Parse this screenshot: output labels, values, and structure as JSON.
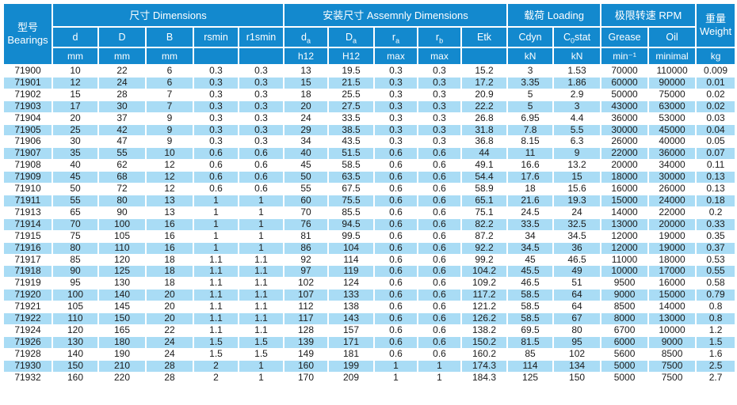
{
  "colors": {
    "header_blue": "#1389ce",
    "row_stripe_blue": "#a9dcf5",
    "row_white": "#ffffff",
    "text_dark": "#1b1b1b"
  },
  "table": {
    "bearings_header": {
      "zh": "型号",
      "en": "Bearings"
    },
    "groups": {
      "dimensions": "尺寸 Dimensions",
      "assembly": "安装尺寸 Assemnly Dimensions",
      "loading": "载荷 Loading",
      "rpm": "极限转速 RPM"
    },
    "weight_header": {
      "zh": "重量",
      "en": "Weight"
    },
    "weight_unit": "kg",
    "columns": [
      {
        "key": "d",
        "name": "d",
        "sub": "",
        "tail": "",
        "unit": "mm"
      },
      {
        "key": "D",
        "name": "D",
        "sub": "",
        "tail": "",
        "unit": "mm"
      },
      {
        "key": "B",
        "name": "B",
        "sub": "",
        "tail": "",
        "unit": "mm"
      },
      {
        "key": "rsmin",
        "name": "rsmin",
        "sub": "",
        "tail": "",
        "unit": ""
      },
      {
        "key": "r1smin",
        "name": "r1smin",
        "sub": "",
        "tail": "",
        "unit": ""
      },
      {
        "key": "da",
        "name": "d",
        "sub": "a",
        "tail": "",
        "unit": "h12"
      },
      {
        "key": "Da",
        "name": "D",
        "sub": "a",
        "tail": "",
        "unit": "H12"
      },
      {
        "key": "ra",
        "name": "r",
        "sub": "a",
        "tail": "",
        "unit": "max"
      },
      {
        "key": "rb",
        "name": "r",
        "sub": "b",
        "tail": "",
        "unit": "max"
      },
      {
        "key": "Etk",
        "name": "Etk",
        "sub": "",
        "tail": "",
        "unit": ""
      },
      {
        "key": "Cdyn",
        "name": "Cdyn",
        "sub": "",
        "tail": "",
        "unit": "kN"
      },
      {
        "key": "C0stat",
        "name": "C",
        "sub": "0",
        "tail": "stat",
        "unit": "kN"
      },
      {
        "key": "Grease",
        "name": "Grease",
        "sub": "",
        "tail": "",
        "unit": "min⁻¹"
      },
      {
        "key": "Oil",
        "name": "Oil",
        "sub": "",
        "tail": "",
        "unit": "minimal"
      }
    ],
    "rows": [
      [
        "71900",
        "10",
        "22",
        "6",
        "0.3",
        "0.3",
        "13",
        "19.5",
        "0.3",
        "0.3",
        "15.2",
        "3",
        "1.53",
        "70000",
        "110000",
        "0.009"
      ],
      [
        "71901",
        "12",
        "24",
        "6",
        "0.3",
        "0.3",
        "15",
        "21.5",
        "0.3",
        "0.3",
        "17.2",
        "3.35",
        "1.86",
        "60000",
        "90000",
        "0.01"
      ],
      [
        "71902",
        "15",
        "28",
        "7",
        "0.3",
        "0.3",
        "18",
        "25.5",
        "0.3",
        "0.3",
        "20.9",
        "5",
        "2.9",
        "50000",
        "75000",
        "0.02"
      ],
      [
        "71903",
        "17",
        "30",
        "7",
        "0.3",
        "0.3",
        "20",
        "27.5",
        "0.3",
        "0.3",
        "22.2",
        "5",
        "3",
        "43000",
        "63000",
        "0.02"
      ],
      [
        "71904",
        "20",
        "37",
        "9",
        "0.3",
        "0.3",
        "24",
        "33.5",
        "0.3",
        "0.3",
        "26.8",
        "6.95",
        "4.4",
        "36000",
        "53000",
        "0.03"
      ],
      [
        "71905",
        "25",
        "42",
        "9",
        "0.3",
        "0.3",
        "29",
        "38.5",
        "0.3",
        "0.3",
        "31.8",
        "7.8",
        "5.5",
        "30000",
        "45000",
        "0.04"
      ],
      [
        "71906",
        "30",
        "47",
        "9",
        "0.3",
        "0.3",
        "34",
        "43.5",
        "0.3",
        "0.3",
        "36.8",
        "8.15",
        "6.3",
        "26000",
        "40000",
        "0.05"
      ],
      [
        "71907",
        "35",
        "55",
        "10",
        "0.6",
        "0.6",
        "40",
        "51.5",
        "0.6",
        "0.6",
        "44",
        "11",
        "9",
        "22000",
        "36000",
        "0.07"
      ],
      [
        "71908",
        "40",
        "62",
        "12",
        "0.6",
        "0.6",
        "45",
        "58.5",
        "0.6",
        "0.6",
        "49.1",
        "16.6",
        "13.2",
        "20000",
        "34000",
        "0.11"
      ],
      [
        "71909",
        "45",
        "68",
        "12",
        "0.6",
        "0.6",
        "50",
        "63.5",
        "0.6",
        "0.6",
        "54.4",
        "17.6",
        "15",
        "18000",
        "30000",
        "0.13"
      ],
      [
        "71910",
        "50",
        "72",
        "12",
        "0.6",
        "0.6",
        "55",
        "67.5",
        "0.6",
        "0.6",
        "58.9",
        "18",
        "15.6",
        "16000",
        "26000",
        "0.13"
      ],
      [
        "71911",
        "55",
        "80",
        "13",
        "1",
        "1",
        "60",
        "75.5",
        "0.6",
        "0.6",
        "65.1",
        "21.6",
        "19.3",
        "15000",
        "24000",
        "0.18"
      ],
      [
        "71913",
        "65",
        "90",
        "13",
        "1",
        "1",
        "70",
        "85.5",
        "0.6",
        "0.6",
        "75.1",
        "24.5",
        "24",
        "14000",
        "22000",
        "0.2"
      ],
      [
        "71914",
        "70",
        "100",
        "16",
        "1",
        "1",
        "76",
        "94.5",
        "0.6",
        "0.6",
        "82.2",
        "33.5",
        "32.5",
        "13000",
        "20000",
        "0.33"
      ],
      [
        "71915",
        "75",
        "105",
        "16",
        "1",
        "1",
        "81",
        "99.5",
        "0.6",
        "0.6",
        "87.2",
        "34",
        "34.5",
        "12000",
        "19000",
        "0.35"
      ],
      [
        "71916",
        "80",
        "110",
        "16",
        "1",
        "1",
        "86",
        "104",
        "0.6",
        "0.6",
        "92.2",
        "34.5",
        "36",
        "12000",
        "19000",
        "0.37"
      ],
      [
        "71917",
        "85",
        "120",
        "18",
        "1.1",
        "1.1",
        "92",
        "114",
        "0.6",
        "0.6",
        "99.2",
        "45",
        "46.5",
        "11000",
        "18000",
        "0.53"
      ],
      [
        "71918",
        "90",
        "125",
        "18",
        "1.1",
        "1.1",
        "97",
        "119",
        "0.6",
        "0.6",
        "104.2",
        "45.5",
        "49",
        "10000",
        "17000",
        "0.55"
      ],
      [
        "71919",
        "95",
        "130",
        "18",
        "1.1",
        "1.1",
        "102",
        "124",
        "0.6",
        "0.6",
        "109.2",
        "46.5",
        "51",
        "9500",
        "16000",
        "0.58"
      ],
      [
        "71920",
        "100",
        "140",
        "20",
        "1.1",
        "1.1",
        "107",
        "133",
        "0.6",
        "0.6",
        "117.2",
        "58.5",
        "64",
        "9000",
        "15000",
        "0.79"
      ],
      [
        "71921",
        "105",
        "145",
        "20",
        "1.1",
        "1.1",
        "112",
        "138",
        "0.6",
        "0.6",
        "121.2",
        "58.5",
        "64",
        "8500",
        "14000",
        "0.8"
      ],
      [
        "71922",
        "110",
        "150",
        "20",
        "1.1",
        "1.1",
        "117",
        "143",
        "0.6",
        "0.6",
        "126.2",
        "58.5",
        "67",
        "8000",
        "13000",
        "0.8"
      ],
      [
        "71924",
        "120",
        "165",
        "22",
        "1.1",
        "1.1",
        "128",
        "157",
        "0.6",
        "0.6",
        "138.2",
        "69.5",
        "80",
        "6700",
        "10000",
        "1.2"
      ],
      [
        "71926",
        "130",
        "180",
        "24",
        "1.5",
        "1.5",
        "139",
        "171",
        "0.6",
        "0.6",
        "150.2",
        "81.5",
        "95",
        "6000",
        "9000",
        "1.5"
      ],
      [
        "71928",
        "140",
        "190",
        "24",
        "1.5",
        "1.5",
        "149",
        "181",
        "0.6",
        "0.6",
        "160.2",
        "85",
        "102",
        "5600",
        "8500",
        "1.6"
      ],
      [
        "71930",
        "150",
        "210",
        "28",
        "2",
        "1",
        "160",
        "199",
        "1",
        "1",
        "174.3",
        "114",
        "134",
        "5000",
        "7500",
        "2.5"
      ],
      [
        "71932",
        "160",
        "220",
        "28",
        "2",
        "1",
        "170",
        "209",
        "1",
        "1",
        "184.3",
        "125",
        "150",
        "5000",
        "7500",
        "2.7"
      ]
    ]
  }
}
